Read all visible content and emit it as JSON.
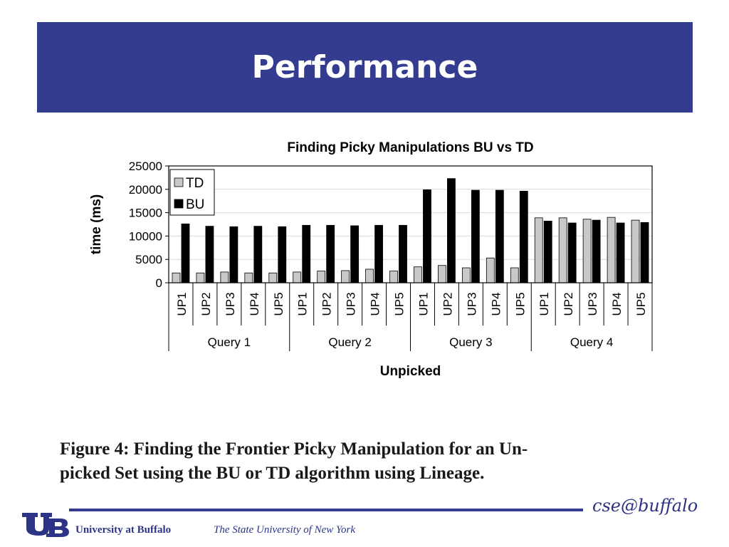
{
  "slide": {
    "title": "Performance",
    "caption_line1": "Figure 4:  Finding the Frontier Picky Manipulation for an Un-",
    "caption_line2": "picked Set using the BU or TD algorithm using Lineage."
  },
  "footer": {
    "university": "University at Buffalo",
    "suny": "The State University of New York",
    "cse_mark": "cse@buffalo",
    "accent_color": "#333c8f"
  },
  "chart_data": {
    "type": "bar",
    "title": "Finding Picky Manipulations BU vs TD",
    "xlabel": "Unpicked",
    "ylabel": "time (ms)",
    "ylim": [
      0,
      25000
    ],
    "yticks": [
      "0",
      "5000",
      "10000",
      "15000",
      "20000",
      "25000"
    ],
    "grid": true,
    "legend_position": "top-left",
    "groups": [
      "Query 1",
      "Query 2",
      "Query 3",
      "Query 4"
    ],
    "categories": [
      "UP1",
      "UP2",
      "UP3",
      "UP4",
      "UP5",
      "UP1",
      "UP2",
      "UP3",
      "UP4",
      "UP5",
      "UP1",
      "UP2",
      "UP3",
      "UP4",
      "UP5",
      "UP1",
      "UP2",
      "UP3",
      "UP4",
      "UP5"
    ],
    "series": [
      {
        "name": "TD",
        "color": "#c8c8c8",
        "values": [
          2100,
          2100,
          2300,
          2100,
          2100,
          2300,
          2500,
          2600,
          2900,
          2500,
          3400,
          3700,
          3200,
          5300,
          3200,
          13900,
          13900,
          13600,
          14000,
          13400
        ]
      },
      {
        "name": "BU",
        "color": "#000000",
        "values": [
          12600,
          12100,
          12000,
          12100,
          12000,
          12300,
          12300,
          12200,
          12300,
          12300,
          19900,
          22300,
          19800,
          19800,
          19600,
          13200,
          12800,
          13400,
          12800,
          12900
        ]
      }
    ]
  }
}
